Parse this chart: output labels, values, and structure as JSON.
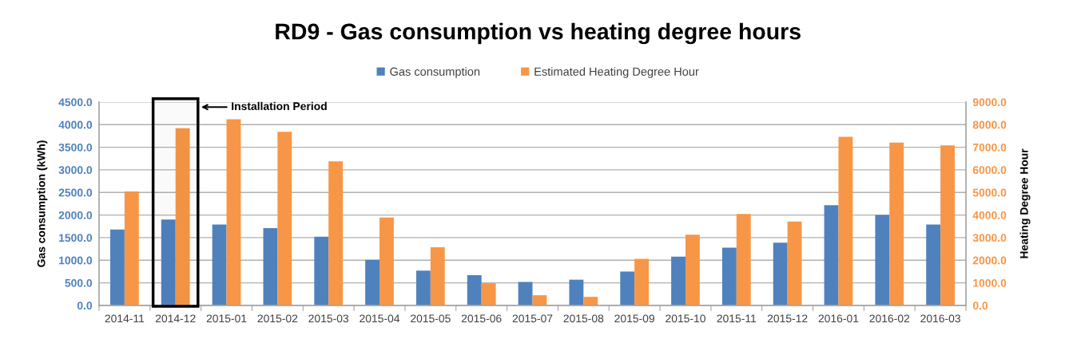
{
  "chart_data": {
    "type": "bar",
    "title": "RD9 - Gas consumption vs heating degree hours",
    "ylabel": "Gas consumption (kWh)",
    "y2label": "Heating Degree Hour",
    "categories": [
      "2014-11",
      "2014-12",
      "2015-01",
      "2015-02",
      "2015-03",
      "2015-04",
      "2015-05",
      "2015-06",
      "2015-07",
      "2015-08",
      "2015-09",
      "2015-10",
      "2015-11",
      "2015-12",
      "2016-01",
      "2016-02",
      "2016-03"
    ],
    "series": [
      {
        "name": "Gas consumption",
        "color": "#4f81bd",
        "values": [
          1680,
          1900,
          1790,
          1710,
          1520,
          1010,
          770,
          670,
          520,
          570,
          750,
          1080,
          1280,
          1390,
          2220,
          2000,
          1790
        ]
      },
      {
        "name": "Estimated Heating Degree Hour",
        "color": "#f79646",
        "axis": "y2",
        "values": [
          5040,
          7840,
          8240,
          7680,
          6380,
          3890,
          2570,
          980,
          450,
          380,
          2060,
          3130,
          4050,
          3710,
          7460,
          7210,
          7080
        ]
      }
    ],
    "ylim": [
      0,
      4500
    ],
    "yticks": [
      {
        "value": 0,
        "label": "0.0"
      },
      {
        "value": 500,
        "label": "500.0"
      },
      {
        "value": 1000,
        "label": "1000.0"
      },
      {
        "value": 1500,
        "label": "1500.0"
      },
      {
        "value": 2000,
        "label": "2000.0"
      },
      {
        "value": 2500,
        "label": "2500.0"
      },
      {
        "value": 3000,
        "label": "3000.0"
      },
      {
        "value": 3500,
        "label": "3500.0"
      },
      {
        "value": 4000,
        "label": "4000.0"
      },
      {
        "value": 4500,
        "label": "4500.0"
      }
    ],
    "y2lim": [
      0,
      9000
    ],
    "y2ticks": [
      {
        "value": 0,
        "label": "0.0"
      },
      {
        "value": 1000,
        "label": "1000.0"
      },
      {
        "value": 2000,
        "label": "2000.0"
      },
      {
        "value": 3000,
        "label": "3000.0"
      },
      {
        "value": 4000,
        "label": "4000.0"
      },
      {
        "value": 5000,
        "label": "5000.0"
      },
      {
        "value": 6000,
        "label": "6000.0"
      },
      {
        "value": 7000,
        "label": "7000.0"
      },
      {
        "value": 8000,
        "label": "8000.0"
      },
      {
        "value": 9000,
        "label": "9000.0"
      }
    ],
    "bands": [
      {
        "axis": "x",
        "from": "2014-12",
        "to": "2014-12",
        "label": "Installation Period",
        "color": "#000000"
      }
    ],
    "grid": "y",
    "legend": "top"
  }
}
